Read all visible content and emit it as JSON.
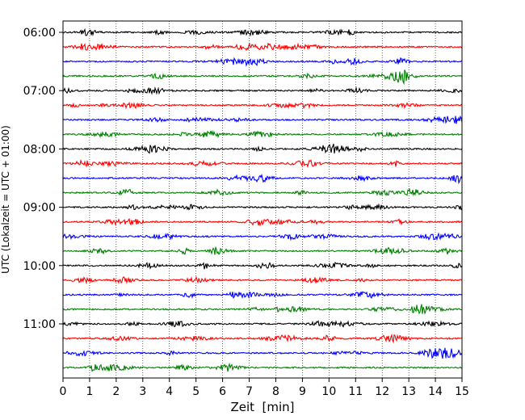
{
  "chart_data": {
    "type": "line",
    "title": "",
    "xlabel": "Zeit  [min]",
    "ylabel": "UTC (Lokalzeit = UTC + 01:00)",
    "xlim": [
      0,
      15
    ],
    "x_ticks": [
      0,
      1,
      2,
      3,
      4,
      5,
      6,
      7,
      8,
      9,
      10,
      11,
      12,
      13,
      14,
      15
    ],
    "y_tick_labels": [
      "06:00",
      "07:00",
      "08:00",
      "09:00",
      "10:00",
      "11:00"
    ],
    "grid": "vertical dotted",
    "row_minutes": 15,
    "traces": [
      {
        "start": "06:00",
        "color": "#000000"
      },
      {
        "start": "06:15",
        "color": "#ff0000"
      },
      {
        "start": "06:30",
        "color": "#0000ff"
      },
      {
        "start": "06:45",
        "color": "#008000"
      },
      {
        "start": "07:00",
        "color": "#000000"
      },
      {
        "start": "07:15",
        "color": "#ff0000"
      },
      {
        "start": "07:30",
        "color": "#0000ff"
      },
      {
        "start": "07:45",
        "color": "#008000"
      },
      {
        "start": "08:00",
        "color": "#000000"
      },
      {
        "start": "08:15",
        "color": "#ff0000"
      },
      {
        "start": "08:30",
        "color": "#0000ff"
      },
      {
        "start": "08:45",
        "color": "#008000"
      },
      {
        "start": "09:00",
        "color": "#000000"
      },
      {
        "start": "09:15",
        "color": "#ff0000"
      },
      {
        "start": "09:30",
        "color": "#0000ff"
      },
      {
        "start": "09:45",
        "color": "#008000"
      },
      {
        "start": "10:00",
        "color": "#000000"
      },
      {
        "start": "10:15",
        "color": "#ff0000"
      },
      {
        "start": "10:30",
        "color": "#0000ff"
      },
      {
        "start": "10:45",
        "color": "#008000"
      },
      {
        "start": "11:00",
        "color": "#000000"
      },
      {
        "start": "11:15",
        "color": "#ff0000"
      },
      {
        "start": "11:30",
        "color": "#0000ff"
      },
      {
        "start": "11:45",
        "color": "#008000"
      }
    ]
  }
}
